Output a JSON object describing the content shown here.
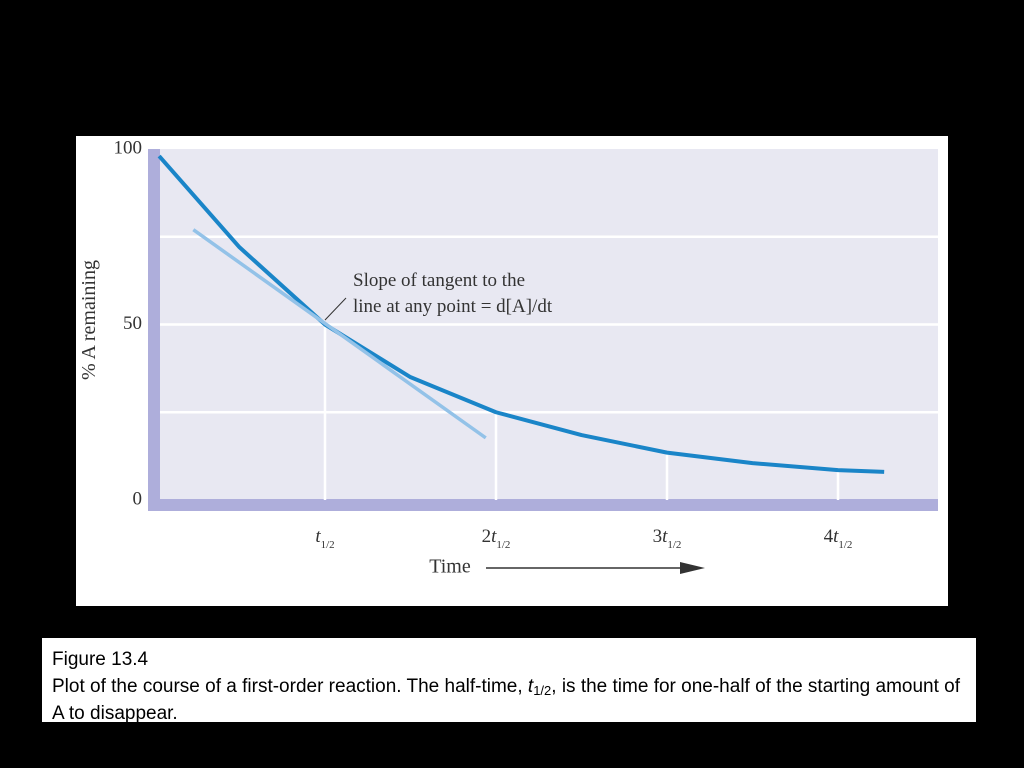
{
  "chart_data": {
    "type": "line",
    "x_label": "Time",
    "y_label": "% A remaining",
    "annotation": [
      "Slope of tangent to the",
      "line at any point = d[A]/dt"
    ],
    "xlim": [
      0,
      4.58
    ],
    "ylim": [
      0,
      100
    ],
    "xticks": [
      {
        "value": 1,
        "label": "t1/2"
      },
      {
        "value": 2,
        "label": "2t1/2"
      },
      {
        "value": 3,
        "label": "3t1/2"
      },
      {
        "value": 4,
        "label": "4t1/2"
      }
    ],
    "yticks": [
      0,
      50,
      100
    ],
    "ygrid": [
      25,
      50,
      75
    ],
    "series": [
      {
        "color": "#1a85c8",
        "x": [
          0.03,
          0.5,
          1,
          1.5,
          2,
          2.5,
          3,
          3.5,
          4,
          4.27
        ],
        "values": [
          98,
          72,
          50,
          35,
          25,
          18.5,
          13.5,
          10.5,
          8.5,
          8
        ]
      },
      {
        "color": "#93c2e8",
        "x": [
          0.23,
          1.94
        ],
        "values": [
          77,
          17.7
        ]
      }
    ]
  },
  "caption": {
    "title": "Figure 13.4",
    "text_parts": [
      "Plot of the course of a first-order reaction. The half-time, ",
      "t",
      "1/2",
      ", is the time for one-half of the starting amount of A to disappear."
    ]
  }
}
